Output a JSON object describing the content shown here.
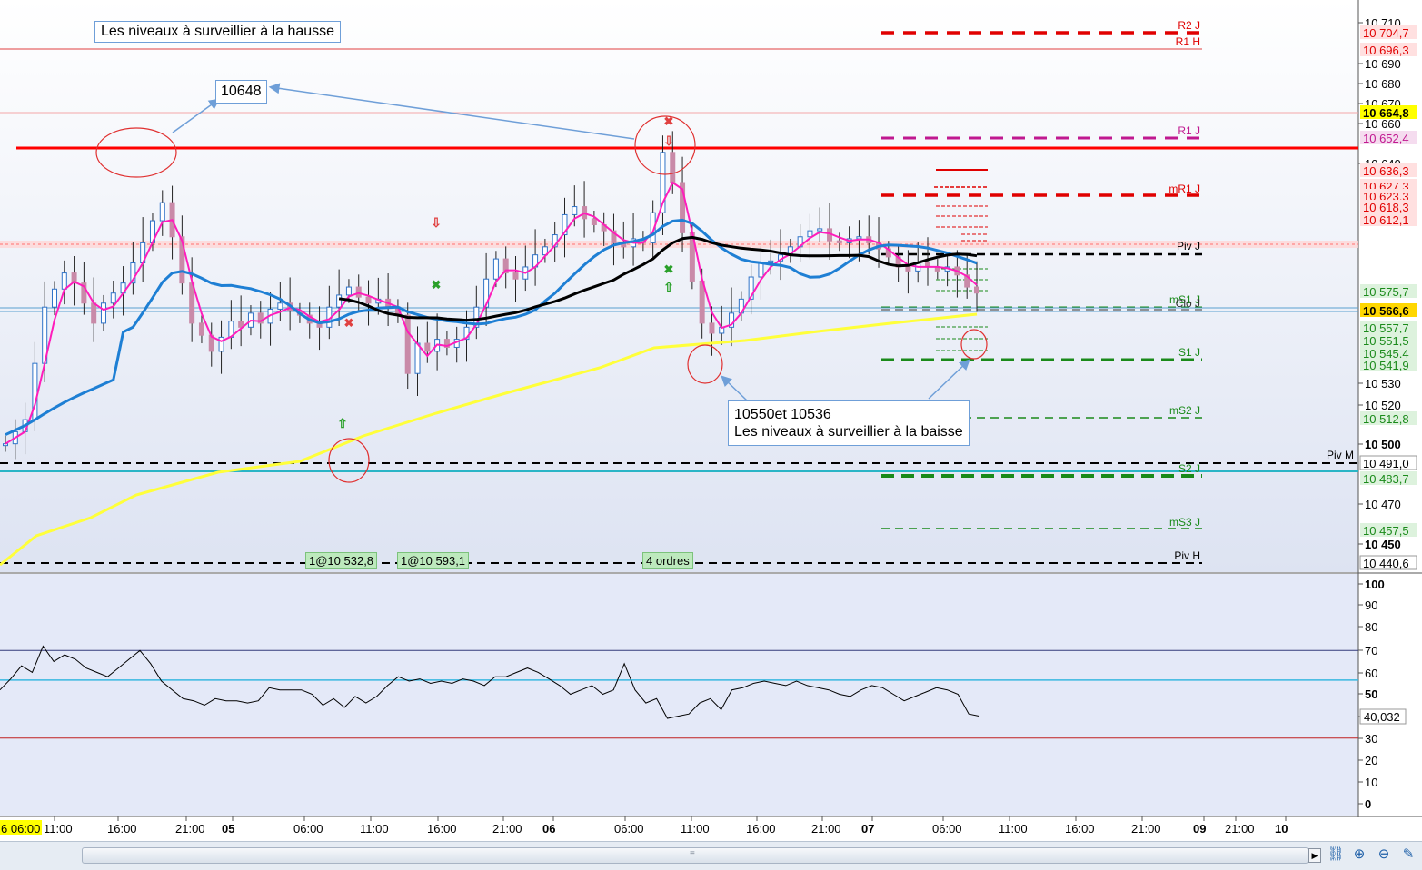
{
  "chart_data": [
    {
      "type": "candlestick",
      "ylim": [
        10430,
        10715
      ],
      "y_ticks": [
        "10 710",
        "10 690",
        "10 680",
        "10 670",
        "10 660",
        "10 640",
        "10 530",
        "10 520",
        "10 500",
        "10 470",
        "10 450"
      ],
      "x_ticks": [
        "6 06:00",
        "11:00",
        "16:00",
        "21:00",
        "05",
        "06:00",
        "11:00",
        "16:00",
        "21:00",
        "06",
        "06:00",
        "11:00",
        "16:00",
        "21:00",
        "07",
        "06:00",
        "11:00",
        "16:00",
        "21:00",
        "09",
        "21:00",
        "10"
      ],
      "price_labels": [
        {
          "text": "10 704,7",
          "value": 10704.7,
          "color": "#e00000",
          "bg": "#ffe0e0"
        },
        {
          "text": "10 696,3",
          "value": 10696.3,
          "color": "#e00000",
          "bg": "#ffe0e0"
        },
        {
          "text": "10 664,8",
          "value": 10664.8,
          "color": "#000000",
          "bg": "#ffff00"
        },
        {
          "text": "10 652,4",
          "value": 10652.4,
          "color": "#c01890",
          "bg": "#f5dcef"
        },
        {
          "text": "10 636,3",
          "value": 10636.3,
          "color": "#e00000",
          "bg": "#ffe0e0"
        },
        {
          "text": "10 627,3",
          "value": 10627.3,
          "color": "#e00000",
          "bg": "#ffe0e0"
        },
        {
          "text": "10 623,3",
          "value": 10623.3,
          "color": "#e00000",
          "bg": "#ffe0e0"
        },
        {
          "text": "10 618,3",
          "value": 10618.3,
          "color": "#e00000",
          "bg": "#ffe0e0"
        },
        {
          "text": "10 612,1",
          "value": 10612.1,
          "color": "#e00000",
          "bg": "#ffe0e0"
        },
        {
          "text": "10 575,7",
          "value": 10575.7,
          "color": "#1a8a1a",
          "bg": "#ddf2dd"
        },
        {
          "text": "10 566,6",
          "value": 10566.6,
          "color": "#000000",
          "bg": "#ffd700"
        },
        {
          "text": "10 557,7",
          "value": 10557.7,
          "color": "#1a8a1a",
          "bg": "#ddf2dd"
        },
        {
          "text": "10 551,5",
          "value": 10551.5,
          "color": "#1a8a1a",
          "bg": "#ddf2dd"
        },
        {
          "text": "10 545,4",
          "value": 10545.4,
          "color": "#1a8a1a",
          "bg": "#ddf2dd"
        },
        {
          "text": "10 541,9",
          "value": 10541.9,
          "color": "#1a8a1a",
          "bg": "#ddf2dd"
        },
        {
          "text": "10 512,8",
          "value": 10512.8,
          "color": "#1a8a1a",
          "bg": "#ddf2dd"
        },
        {
          "text": "10 491,0",
          "value": 10491.0,
          "color": "#000000",
          "bg": "#ffffff"
        },
        {
          "text": "10 483,7",
          "value": 10483.7,
          "color": "#1a8a1a",
          "bg": "#ddf2dd"
        },
        {
          "text": "10 457,5",
          "value": 10457.5,
          "color": "#1a8a1a",
          "bg": "#ddf2dd"
        },
        {
          "text": "10 440,6",
          "value": 10440.6,
          "color": "#000000",
          "bg": "#ffffff"
        }
      ],
      "levels": [
        {
          "name": "R2 J",
          "value": 10704.7,
          "color": "#e00000",
          "style": "dash-thick"
        },
        {
          "name": "R1 H",
          "value": 10696.3,
          "color": "#e00000",
          "style": "solid-thin"
        },
        {
          "name": "R1 J",
          "value": 10652.4,
          "color": "#c01890",
          "style": "dash-thick"
        },
        {
          "name": "mR1 J",
          "value": 10627.3,
          "color": "#e00000",
          "style": "dash-thick"
        },
        {
          "name": "Piv J",
          "value": 10590,
          "color": "#000000",
          "style": "dash"
        },
        {
          "name": "mS1 J",
          "value": 10568.5,
          "color": "#1a8a1a",
          "style": "dash"
        },
        {
          "name": "Clo J",
          "value": 10566.6,
          "color": "#333333",
          "style": "dash"
        },
        {
          "name": "S1 J",
          "value": 10541.9,
          "color": "#1a8a1a",
          "style": "dash-thick"
        },
        {
          "name": "mS2 J",
          "value": 10512.8,
          "color": "#1a8a1a",
          "style": "dash"
        },
        {
          "name": "Piv M",
          "value": 10491.0,
          "color": "#000000",
          "style": "dash-full"
        },
        {
          "name": "S2 J",
          "value": 10483.7,
          "color": "#1a8a1a",
          "style": "dash-thick"
        },
        {
          "name": "mS3 J",
          "value": 10457.5,
          "color": "#1a8a1a",
          "style": "dash"
        },
        {
          "name": "Piv H",
          "value": 10440.6,
          "color": "#000000",
          "style": "dash-full"
        }
      ],
      "close_series": [
        10500,
        10506,
        10512,
        10540,
        10568,
        10577,
        10585,
        10580,
        10570,
        10560,
        10570,
        10575,
        10580,
        10590,
        10600,
        10611,
        10620,
        10603,
        10580,
        10560,
        10554,
        10546,
        10553,
        10561,
        10558,
        10565,
        10560,
        10567,
        10570,
        10566,
        10564,
        10560,
        10558,
        10568,
        10574,
        10578,
        10573,
        10570,
        10572,
        10568,
        10564,
        10535,
        10550,
        10546,
        10552,
        10548,
        10552,
        10558,
        10568,
        10582,
        10592,
        10585,
        10582,
        10588,
        10594,
        10598,
        10604,
        10614,
        10618,
        10612,
        10609,
        10606,
        10600,
        10598,
        10602,
        10600,
        10615,
        10645,
        10630,
        10605,
        10581,
        10560,
        10555,
        10558,
        10565,
        10572,
        10583,
        10590,
        10591,
        10594,
        10598,
        10603,
        10606,
        10607,
        10601,
        10600,
        10602,
        10603,
        10600,
        10597,
        10593,
        10588,
        10586,
        10590,
        10588,
        10586,
        10588,
        10584,
        10578,
        10575
      ]
    },
    {
      "type": "line",
      "name": "RSI",
      "ylim": [
        0,
        100
      ],
      "y_ticks": [
        "100",
        "90",
        "80",
        "70",
        "60",
        "50",
        "40",
        "30",
        "20",
        "10",
        "0"
      ],
      "bands": [
        70,
        30
      ],
      "midline": 56.5,
      "current_label": "40,032",
      "values": [
        52,
        57,
        63,
        60,
        72,
        65,
        68,
        66,
        62,
        60,
        58,
        62,
        66,
        70,
        64,
        56,
        52,
        48,
        47,
        45,
        48,
        47,
        47,
        46,
        47,
        53,
        52,
        52,
        52,
        50,
        45,
        48,
        44,
        49,
        46,
        49,
        54,
        58,
        56,
        57,
        55,
        56,
        55,
        57,
        56,
        54,
        58,
        58,
        60,
        62,
        60,
        57,
        54,
        50,
        52,
        54,
        50,
        52,
        64,
        52,
        46,
        48,
        39,
        40,
        41,
        46,
        48,
        43,
        52,
        53,
        55,
        56,
        55,
        54,
        56,
        54,
        53,
        52,
        50,
        49,
        52,
        54,
        53,
        50,
        47,
        49,
        51,
        53,
        52,
        50,
        41,
        40
      ]
    }
  ],
  "annotations": {
    "hausse_label": "Les niveaux à surveillier à la hausse",
    "callout_10648": "10648",
    "callout_baisse": "10550et 10536\nLes niveaux à surveillier à la baisse",
    "orders": [
      "1@10 532,8",
      "1@10 593,1",
      "4 ordres"
    ]
  },
  "colors": {
    "fast_ma": "#ff1dbb",
    "mid_ma": "#1e7fd4",
    "slow_ma": "#000000",
    "long_ma": "#ffff3a",
    "resistance_line": "#ff0000",
    "support_line": "#2ab5c6"
  },
  "icons": [
    "scroll-right-icon",
    "split-view-icon",
    "zoom-fit-icon",
    "zoom-out-icon",
    "properties-icon"
  ]
}
